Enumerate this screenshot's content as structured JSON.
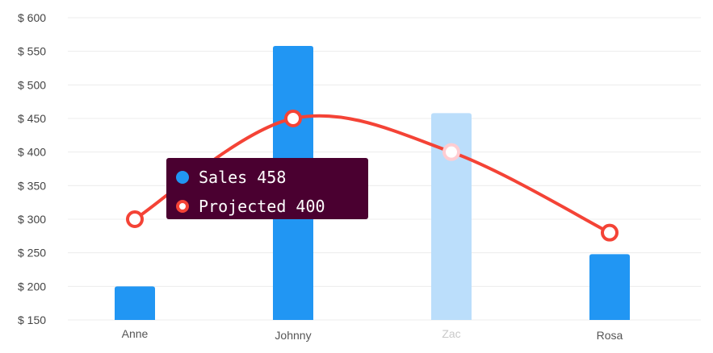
{
  "chart_data": {
    "type": "bar",
    "categories": [
      "Anne",
      "Johnny",
      "Zac",
      "Rosa"
    ],
    "highlighted_category": "Zac",
    "ylim": [
      150,
      600
    ],
    "y_ticks": [
      "$ 150",
      "$ 200",
      "$ 250",
      "$ 300",
      "$ 350",
      "$ 400",
      "$ 450",
      "$ 500",
      "$ 550",
      "$ 600"
    ],
    "y_tick_values": [
      150,
      200,
      250,
      300,
      350,
      400,
      450,
      500,
      550,
      600
    ],
    "grid": true,
    "series": [
      {
        "name": "Sales",
        "type": "bar",
        "color": "#2196f3",
        "dim_color": "#bbdefb",
        "values": [
          200,
          558,
          458,
          248
        ]
      },
      {
        "name": "Projected",
        "type": "line",
        "color": "#f44336",
        "values": [
          300,
          450,
          400,
          280
        ]
      }
    ]
  },
  "tooltip": {
    "rows": [
      {
        "label": "Sales",
        "value": "458"
      },
      {
        "label": "Projected",
        "value": "400"
      }
    ]
  }
}
